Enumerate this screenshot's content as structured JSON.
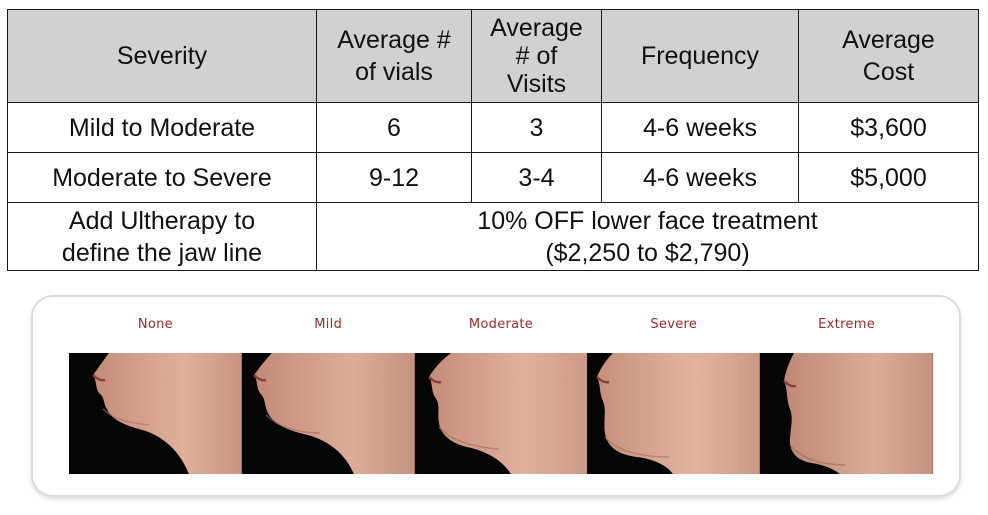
{
  "table": {
    "headers": [
      [
        "Severity"
      ],
      [
        "Average #",
        "of vials"
      ],
      [
        "Average",
        "# of",
        "Visits"
      ],
      [
        "Frequency"
      ],
      [
        "Average",
        "Cost"
      ]
    ],
    "rows": [
      [
        "Mild to Moderate",
        "6",
        "3",
        "4-6 weeks",
        "$3,600"
      ],
      [
        "Moderate to Severe",
        "9-12",
        "3-4",
        "4-6 weeks",
        "$5,000"
      ]
    ],
    "addon": {
      "label_lines": [
        "Add Ultherapy to",
        "define the jaw line"
      ],
      "offer_lines": [
        "10% OFF lower face treatment",
        "($2,250 to $2,790)"
      ]
    }
  },
  "severity_scale": {
    "labels": [
      "None",
      "Mild",
      "Moderate",
      "Severe",
      "Extreme"
    ]
  },
  "colors": {
    "header_bg": "#d1d1d1",
    "label_color": "#9b2a2a",
    "skin_tone": "#d9a48e"
  }
}
